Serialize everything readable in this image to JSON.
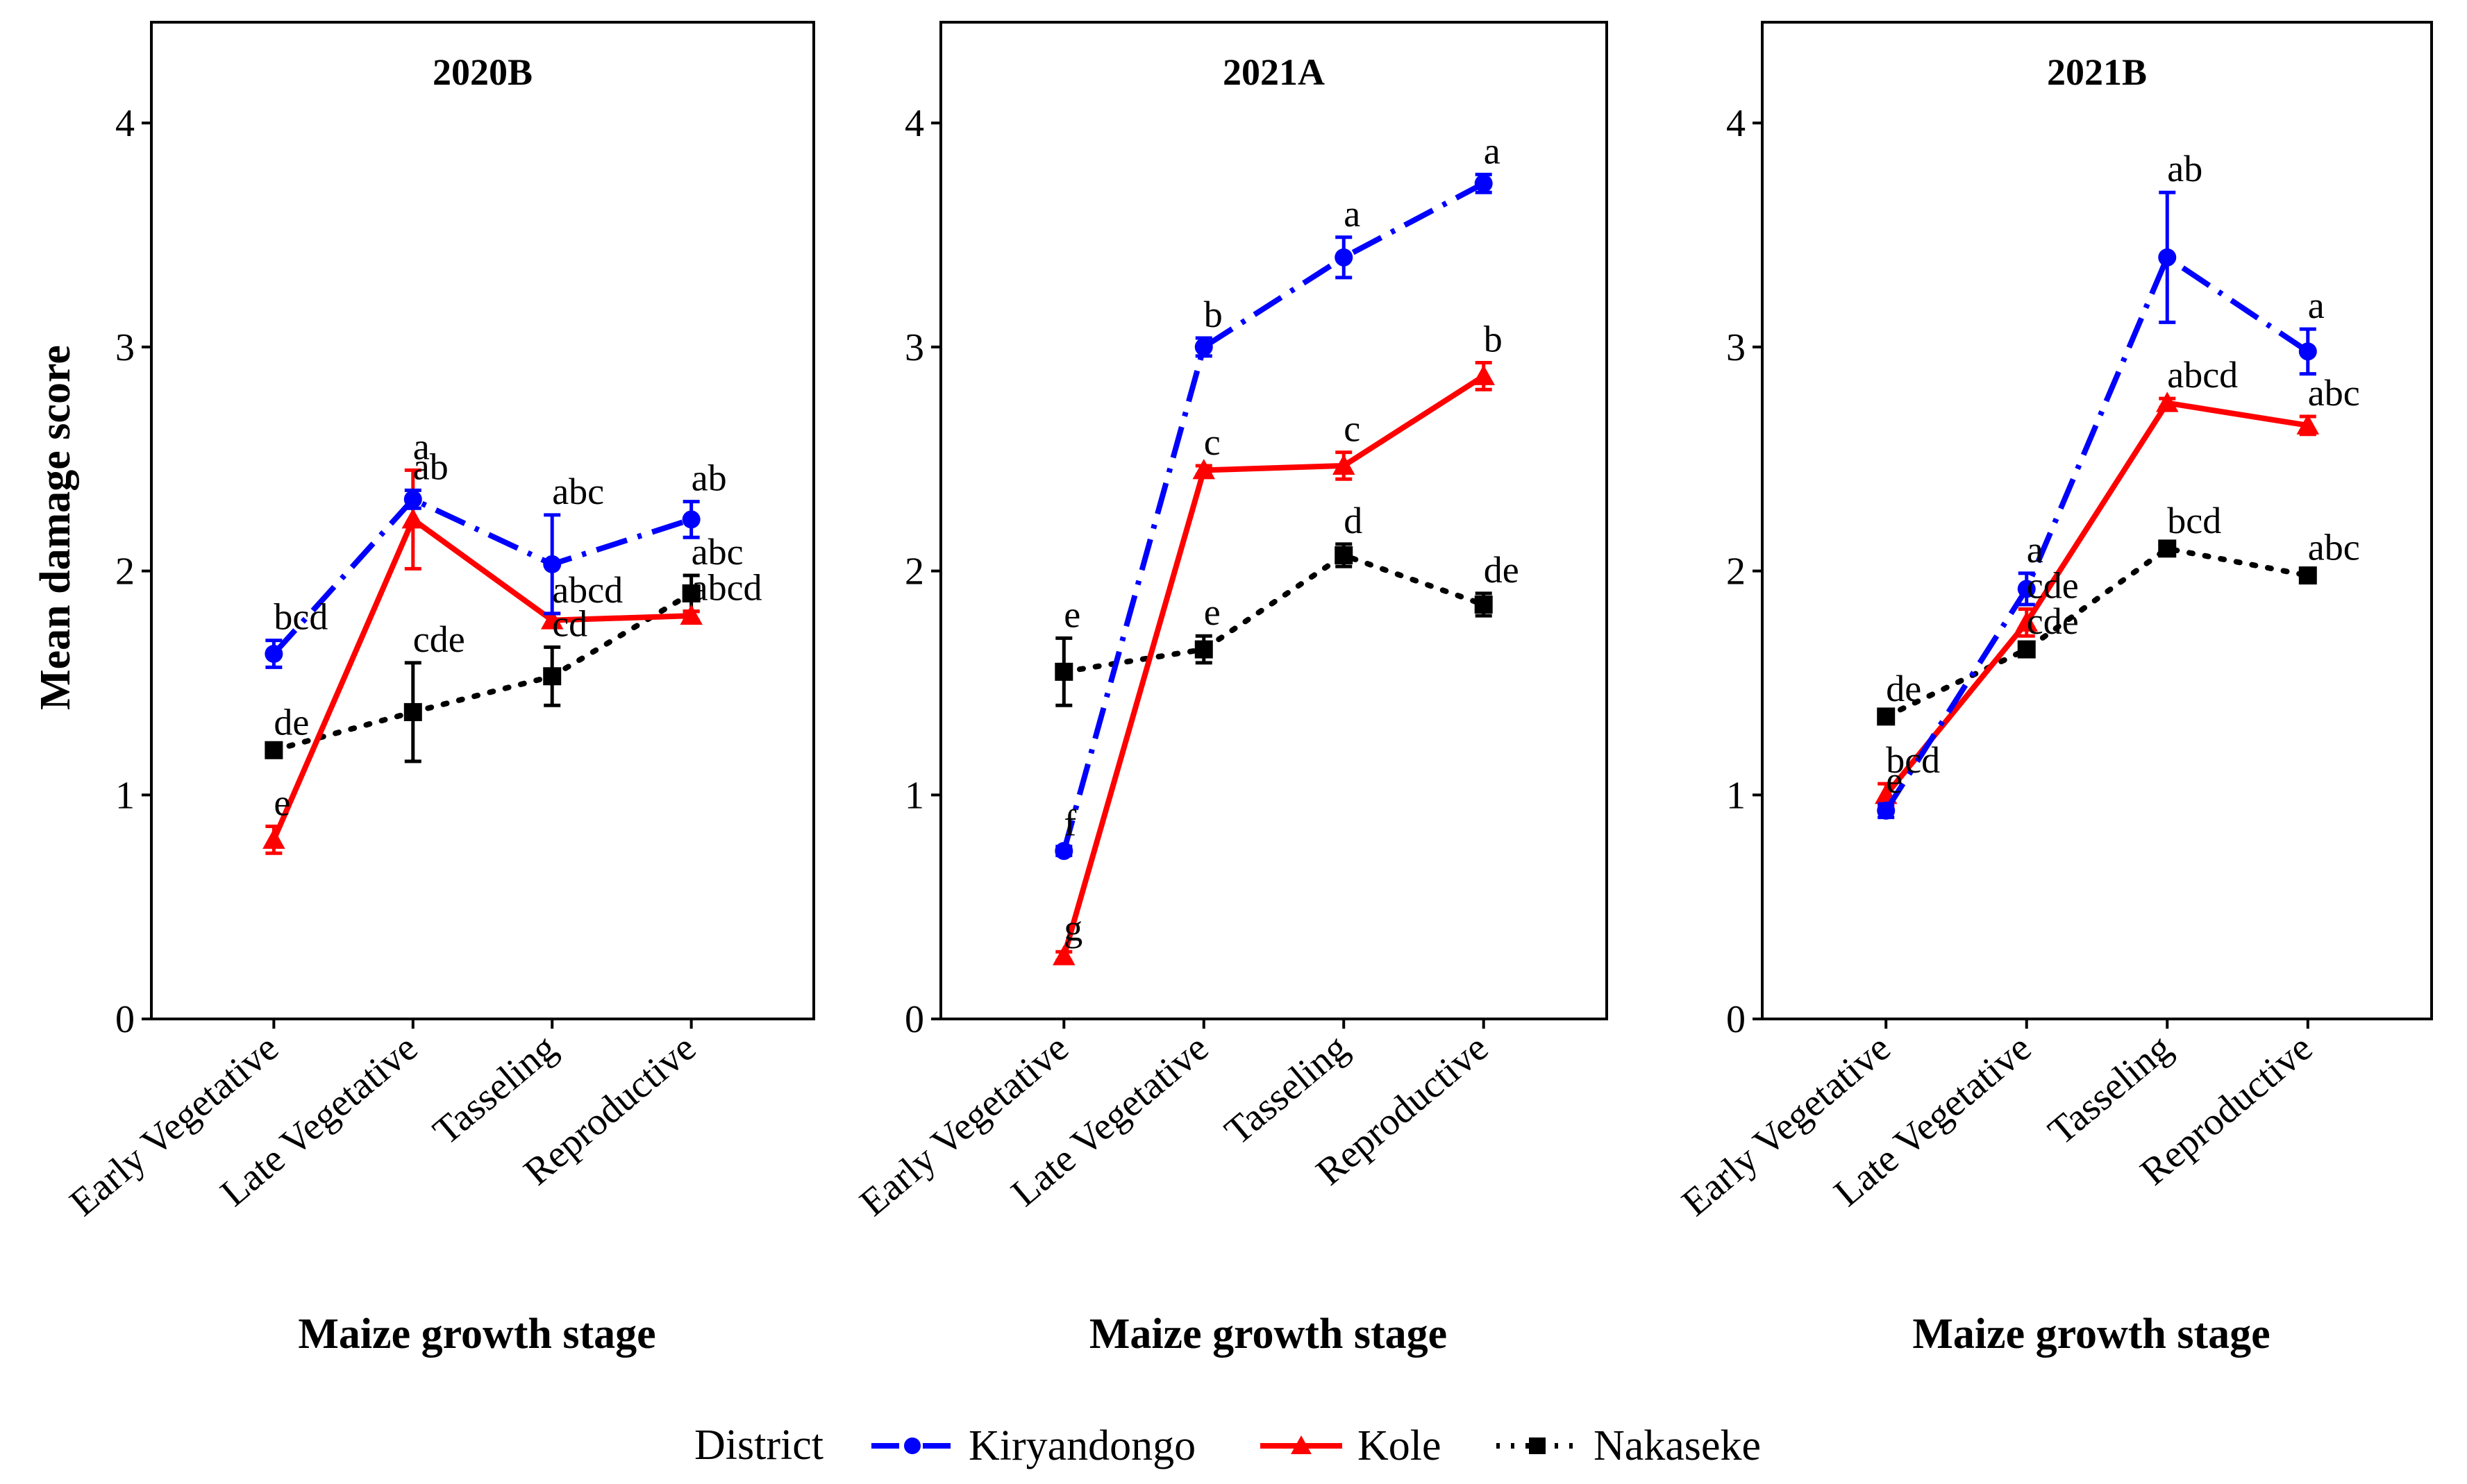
{
  "chart_data": {
    "type": "line",
    "ylabel": "Mean damage score",
    "xlabel": "Maize growth stage",
    "ylim": [
      0,
      4.45
    ],
    "y_ticks": [
      "0",
      "1",
      "2",
      "3",
      "4"
    ],
    "categories": [
      "Early Vegetative",
      "Late Vegetative",
      "Tasseling",
      "Reproductive"
    ],
    "legend": {
      "title": "District",
      "position": "bottom",
      "entries": [
        {
          "name": "Kiryandongo",
          "color": "#0000FF",
          "marker": "circle",
          "line": "dotdash"
        },
        {
          "name": "Kole",
          "color": "#FF0000",
          "marker": "triangle",
          "line": "solid"
        },
        {
          "name": "Nakaseke",
          "color": "#000000",
          "marker": "square",
          "line": "dotted"
        }
      ]
    },
    "panels": [
      {
        "title": "2020B",
        "series": [
          {
            "name": "Kiryandongo",
            "values": [
              1.63,
              2.32,
              2.03,
              2.23
            ],
            "err": [
              0.06,
              0.04,
              0.22,
              0.08
            ],
            "letters": [
              "bcd",
              "ab",
              "abc",
              "ab"
            ]
          },
          {
            "name": "Kole",
            "values": [
              0.8,
              2.23,
              1.78,
              1.8
            ],
            "err": [
              0.06,
              0.22,
              0.03,
              0.02
            ],
            "letters": [
              "e",
              "a",
              "abcd",
              "abcd"
            ]
          },
          {
            "name": "Nakaseke",
            "values": [
              1.2,
              1.37,
              1.53,
              1.9
            ],
            "err": [
              0.02,
              0.22,
              0.13,
              0.08
            ],
            "letters": [
              "de",
              "cde",
              "cd",
              "abc"
            ]
          }
        ]
      },
      {
        "title": "2021A",
        "series": [
          {
            "name": "Kiryandongo",
            "values": [
              0.75,
              3.0,
              3.4,
              3.73
            ],
            "err": [
              0.02,
              0.04,
              0.09,
              0.04
            ],
            "letters": [
              "f",
              "b",
              "a",
              "a"
            ]
          },
          {
            "name": "Kole",
            "values": [
              0.28,
              2.45,
              2.47,
              2.87
            ],
            "err": [
              0.02,
              0.02,
              0.06,
              0.06
            ],
            "letters": [
              "g",
              "c",
              "c",
              "b"
            ]
          },
          {
            "name": "Nakaseke",
            "values": [
              1.55,
              1.65,
              2.07,
              1.85
            ],
            "err": [
              0.15,
              0.06,
              0.05,
              0.05
            ],
            "letters": [
              "e",
              "e",
              "d",
              "de"
            ]
          }
        ]
      },
      {
        "title": "2021B",
        "series": [
          {
            "name": "Kiryandongo",
            "values": [
              0.93,
              1.92,
              3.4,
              2.98
            ],
            "err": [
              0.03,
              0.07,
              0.29,
              0.1
            ],
            "letters": [
              "e",
              "a",
              "ab",
              "a"
            ]
          },
          {
            "name": "Kole",
            "values": [
              1.0,
              1.77,
              2.75,
              2.65
            ],
            "err": [
              0.05,
              0.06,
              0.02,
              0.04
            ],
            "letters": [
              "bcd",
              "cde",
              "abcd",
              "abc"
            ]
          },
          {
            "name": "Nakaseke",
            "values": [
              1.35,
              1.65,
              2.1,
              1.98
            ],
            "err": [
              0.02,
              0.02,
              0.02,
              0.02
            ],
            "letters": [
              "de",
              "cde",
              "bcd",
              "abc"
            ]
          }
        ]
      }
    ]
  }
}
